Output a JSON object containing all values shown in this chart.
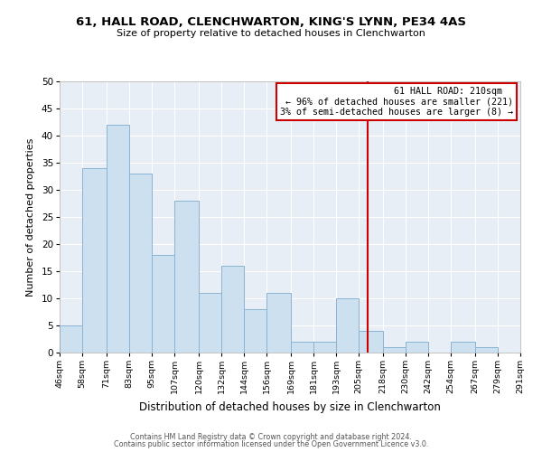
{
  "title": "61, HALL ROAD, CLENCHWARTON, KING'S LYNN, PE34 4AS",
  "subtitle": "Size of property relative to detached houses in Clenchwarton",
  "xlabel": "Distribution of detached houses by size in Clenchwarton",
  "ylabel": "Number of detached properties",
  "bar_color": "#cce0f0",
  "bar_edge_color": "#8ab4d4",
  "bins": [
    46,
    58,
    71,
    83,
    95,
    107,
    120,
    132,
    144,
    156,
    169,
    181,
    193,
    205,
    218,
    230,
    242,
    254,
    267,
    279,
    291
  ],
  "counts": [
    5,
    34,
    42,
    33,
    18,
    28,
    11,
    16,
    8,
    11,
    2,
    2,
    10,
    4,
    1,
    2,
    0,
    2,
    1,
    0
  ],
  "tick_labels": [
    "46sqm",
    "58sqm",
    "71sqm",
    "83sqm",
    "95sqm",
    "107sqm",
    "120sqm",
    "132sqm",
    "144sqm",
    "156sqm",
    "169sqm",
    "181sqm",
    "193sqm",
    "205sqm",
    "218sqm",
    "230sqm",
    "242sqm",
    "254sqm",
    "267sqm",
    "279sqm",
    "291sqm"
  ],
  "ylim": [
    0,
    50
  ],
  "yticks": [
    0,
    5,
    10,
    15,
    20,
    25,
    30,
    35,
    40,
    45,
    50
  ],
  "property_line_x": 210,
  "property_line_color": "#cc0000",
  "annotation_title": "61 HALL ROAD: 210sqm",
  "annotation_line1": "← 96% of detached houses are smaller (221)",
  "annotation_line2": "3% of semi-detached houses are larger (8) →",
  "annotation_box_color": "#ffffff",
  "annotation_box_edge": "#cc0000",
  "footer_line1": "Contains HM Land Registry data © Crown copyright and database right 2024.",
  "footer_line2": "Contains public sector information licensed under the Open Government Licence v3.0.",
  "background_color": "#ffffff",
  "plot_bg_color": "#e8eef5",
  "grid_color": "#ffffff"
}
